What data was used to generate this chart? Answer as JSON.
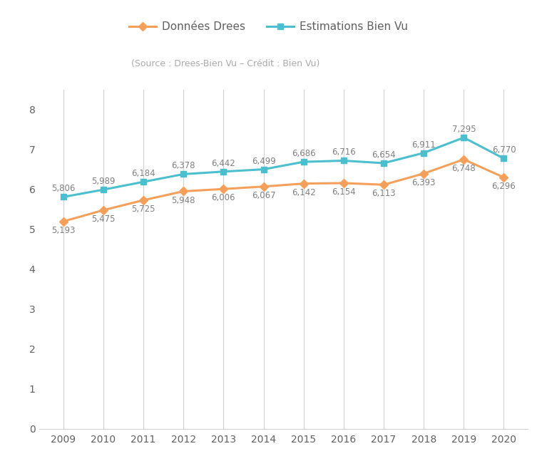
{
  "years": [
    2009,
    2010,
    2011,
    2012,
    2013,
    2014,
    2015,
    2016,
    2017,
    2018,
    2019,
    2020
  ],
  "donnees_drees": [
    5.193,
    5.475,
    5.725,
    5.948,
    6.006,
    6.067,
    6.142,
    6.154,
    6.113,
    6.393,
    6.748,
    6.296
  ],
  "estimations_bv": [
    5.806,
    5.989,
    6.184,
    6.378,
    6.442,
    6.499,
    6.686,
    6.716,
    6.654,
    6.911,
    7.295,
    6.77
  ],
  "donnees_labels": [
    "5,193",
    "5,475",
    "5,725",
    "5,948",
    "6,006",
    "6,067",
    "6,142",
    "6,154",
    "6,113",
    "6,393",
    "6,748",
    "6,296"
  ],
  "estimations_labels": [
    "5,806",
    "5,989",
    "6,184",
    "6,378",
    "6,442",
    "6,499",
    "6,686",
    "6,716",
    "6,654",
    "6,911",
    "7,295",
    "6,770"
  ],
  "color_drees": "#f5a05a",
  "color_bv": "#4bbfce",
  "legend_drees": "Données Drees",
  "legend_bv": "Estimations Bien Vu",
  "source_text": "(Source : Drees-Bien Vu – Crédit : Bien Vu)",
  "ylim": [
    0,
    8.5
  ],
  "yticks": [
    0,
    1,
    2,
    3,
    4,
    5,
    6,
    7,
    8
  ],
  "background_color": "#ffffff",
  "grid_color": "#d0d0d0",
  "label_fontsize": 8.5,
  "axis_fontsize": 10,
  "legend_fontsize": 11,
  "source_fontsize": 9
}
